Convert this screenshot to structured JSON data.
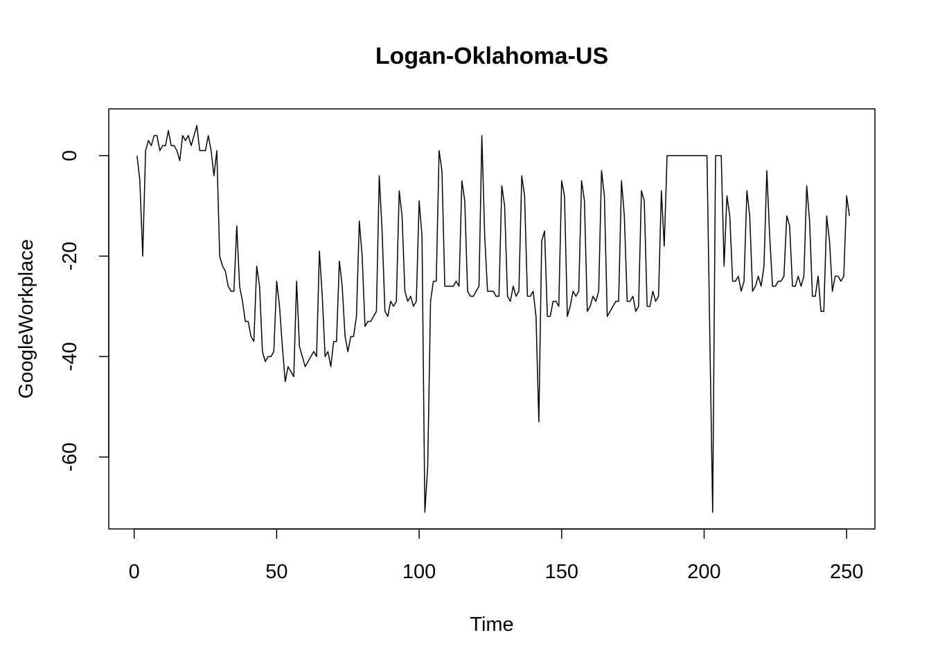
{
  "chart_data": {
    "type": "line",
    "title": "Logan-Oklahoma-US",
    "xlabel": "Time",
    "ylabel": "GoogleWorkplace",
    "xlim": [
      -8.92,
      259.92
    ],
    "ylim": [
      -74.32,
      9.32
    ],
    "x_ticks": [
      0,
      50,
      100,
      150,
      200,
      250
    ],
    "y_ticks": [
      -60,
      -40,
      -20,
      0
    ],
    "x_tick_labels": [
      "0",
      "50",
      "100",
      "150",
      "200",
      "250"
    ],
    "y_tick_labels": [
      "-60",
      "-40",
      "-20",
      "0"
    ],
    "grid": false,
    "legend": "none",
    "line_color": "#000000",
    "series": [
      {
        "x_start": 1,
        "x_step": 1,
        "values": [
          0,
          -5,
          -20,
          1,
          3,
          2,
          4,
          4,
          1,
          2,
          2,
          5,
          2,
          2,
          1,
          -1,
          4,
          3,
          4,
          2,
          4,
          6,
          1,
          1,
          1,
          4,
          1,
          -4,
          1,
          -20,
          -22,
          -23,
          -26,
          -27,
          -27,
          -14,
          -26,
          -29,
          -33,
          -33,
          -36,
          -37,
          -22,
          -26,
          -39,
          -41,
          -40,
          -40,
          -39,
          -25,
          -30,
          -38,
          -45,
          -42,
          -43,
          -44,
          -25,
          -38,
          -40,
          -42,
          -41,
          -40,
          -39,
          -40,
          -19,
          -28,
          -40,
          -39,
          -42,
          -37,
          -37,
          -21,
          -26,
          -36,
          -39,
          -36,
          -36,
          -32,
          -13,
          -20,
          -34,
          -33,
          -33,
          -32,
          -31,
          -4,
          -15,
          -31,
          -32,
          -29,
          -30,
          -29,
          -7,
          -12,
          -27,
          -29,
          -28,
          -30,
          -29,
          -9,
          -16,
          -71,
          -62,
          -29,
          -25,
          -25,
          1,
          -3,
          -26,
          -26,
          -26,
          -26,
          -25,
          -26,
          -5,
          -9,
          -27,
          -28,
          -28,
          -27,
          -26,
          4,
          -16,
          -27,
          -27,
          -27,
          -28,
          -28,
          -6,
          -10,
          -28,
          -29,
          -26,
          -28,
          -27,
          -4,
          -8,
          -28,
          -28,
          -27,
          -32,
          -53,
          -17,
          -15,
          -32,
          -32,
          -29,
          -29,
          -30,
          -5,
          -8,
          -32,
          -30,
          -27,
          -28,
          -27,
          -5,
          -9,
          -31,
          -30,
          -28,
          -29,
          -27,
          -3,
          -8,
          -32,
          -31,
          -30,
          -29,
          -29,
          -5,
          -12,
          -29,
          -29,
          -28,
          -31,
          -30,
          -7,
          -9,
          -30,
          -30,
          -27,
          -29,
          -28,
          -7,
          -18,
          0,
          0,
          0,
          0,
          0,
          0,
          0,
          0,
          0,
          0,
          0,
          0,
          0,
          0,
          0,
          -36,
          -71,
          0,
          0,
          0,
          -22,
          -8,
          -12,
          -25,
          -25,
          -24,
          -27,
          -25,
          -7,
          -12,
          -27,
          -26,
          -24,
          -26,
          -22,
          -3,
          -16,
          -26,
          -26,
          -25,
          -25,
          -24,
          -12,
          -14,
          -26,
          -26,
          -24,
          -26,
          -24,
          -6,
          -13,
          -28,
          -28,
          -24,
          -31,
          -31,
          -12,
          -17,
          -27,
          -24,
          -24,
          -25,
          -24,
          -8,
          -12
        ]
      }
    ]
  }
}
